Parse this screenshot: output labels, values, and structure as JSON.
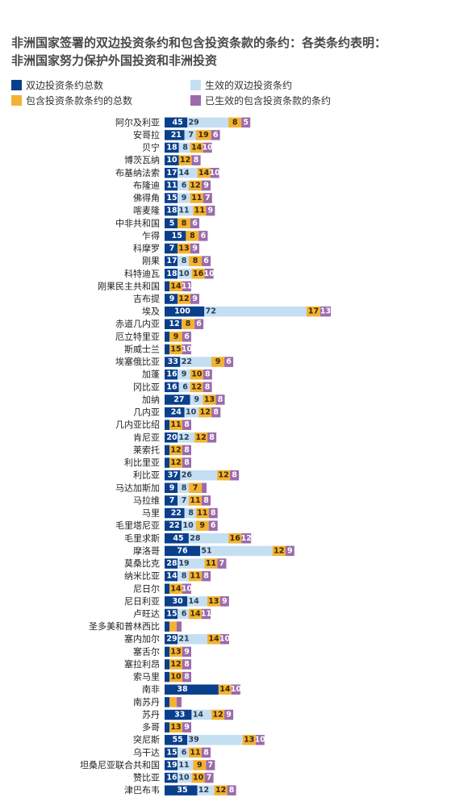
{
  "title_lines": [
    "非洲国家签署的双边投资条约和包含投资条款的条约：各类条约表明：",
    "非洲国家努力保护外国投资和非洲投资"
  ],
  "colors": {
    "bit_total": "#0a3f8c",
    "bit_in_force": "#c5dff2",
    "tip_total": "#f2b233",
    "tip_in_force": "#9b6bab"
  },
  "legend": [
    {
      "key": "bit_total",
      "label": "双边投资条约总数"
    },
    {
      "key": "bit_in_force",
      "label": "生效的双边投资条约"
    },
    {
      "key": "tip_total",
      "label": "包含投资条款条约的总数"
    },
    {
      "key": "tip_in_force",
      "label": "已生效的包含投资条款的条约"
    }
  ],
  "chart_data": {
    "type": "bar",
    "orientation": "horizontal",
    "stacked": true,
    "legend_position": "top",
    "grid": false,
    "series_names": [
      "双边投资条约总数",
      "生效的双边投资条约",
      "包含投资条款条约的总数",
      "已生效的包含投资条款的条约"
    ],
    "countries": [
      {
        "name": "阿尔及利亚",
        "bit_total": 45,
        "bit_in_force": 29,
        "tip_total": 8,
        "tip_in_force": 5
      },
      {
        "name": "安哥拉",
        "bit_total": 21,
        "bit_in_force": 7,
        "tip_total": 19,
        "tip_in_force": 6
      },
      {
        "name": "贝宁",
        "bit_total": 18,
        "bit_in_force": 8,
        "tip_total": 14,
        "tip_in_force": 10
      },
      {
        "name": "博茨瓦纳",
        "bit_total": 10,
        "bit_in_force": null,
        "tip_total": 12,
        "tip_in_force": 8
      },
      {
        "name": "布基纳法索",
        "bit_total": 17,
        "bit_in_force": 14,
        "tip_total": 14,
        "tip_in_force": 10
      },
      {
        "name": "布隆迪",
        "bit_total": 11,
        "bit_in_force": 6,
        "tip_total": 12,
        "tip_in_force": 9
      },
      {
        "name": "佛得角",
        "bit_total": 15,
        "bit_in_force": 9,
        "tip_total": 11,
        "tip_in_force": 7
      },
      {
        "name": "喀麦隆",
        "bit_total": 18,
        "bit_in_force": 11,
        "tip_total": 11,
        "tip_in_force": 9
      },
      {
        "name": "中非共和国",
        "bit_total": 5,
        "bit_in_force": null,
        "tip_total": 8,
        "tip_in_force": 6
      },
      {
        "name": "乍得",
        "bit_total": 15,
        "bit_in_force": null,
        "tip_total": 8,
        "tip_in_force": 6
      },
      {
        "name": "科摩罗",
        "bit_total": 7,
        "bit_in_force": null,
        "tip_total": 13,
        "tip_in_force": 9
      },
      {
        "name": "刚果",
        "bit_total": 17,
        "bit_in_force": 8,
        "tip_total": 8,
        "tip_in_force": 6
      },
      {
        "name": "科特迪瓦",
        "bit_total": 18,
        "bit_in_force": 10,
        "tip_total": 16,
        "tip_in_force": 10
      },
      {
        "name": "刚果民主共和国",
        "bit_total": null,
        "bit_in_force": null,
        "tip_total": 14,
        "tip_in_force": 11
      },
      {
        "name": "吉布提",
        "bit_total": 9,
        "bit_in_force": null,
        "tip_total": 12,
        "tip_in_force": 9
      },
      {
        "name": "埃及",
        "bit_total": 100,
        "bit_in_force": 72,
        "tip_total": 17,
        "tip_in_force": 13
      },
      {
        "name": "赤道几内亚",
        "bit_total": 12,
        "bit_in_force": null,
        "tip_total": 8,
        "tip_in_force": 6
      },
      {
        "name": "厄立特里亚",
        "bit_total": null,
        "bit_in_force": null,
        "tip_total": 9,
        "tip_in_force": 6
      },
      {
        "name": "斯威士兰",
        "bit_total": null,
        "bit_in_force": null,
        "tip_total": 15,
        "tip_in_force": 10
      },
      {
        "name": "埃塞俄比亚",
        "bit_total": 33,
        "bit_in_force": 22,
        "tip_total": 9,
        "tip_in_force": 6
      },
      {
        "name": "加蓬",
        "bit_total": 16,
        "bit_in_force": 9,
        "tip_total": 10,
        "tip_in_force": 8
      },
      {
        "name": "冈比亚",
        "bit_total": 16,
        "bit_in_force": 6,
        "tip_total": 12,
        "tip_in_force": 8
      },
      {
        "name": "加纳",
        "bit_total": 27,
        "bit_in_force": 9,
        "tip_total": 13,
        "tip_in_force": 8
      },
      {
        "name": "几内亚",
        "bit_total": 24,
        "bit_in_force": 10,
        "tip_total": 12,
        "tip_in_force": 8
      },
      {
        "name": "几内亚比绍",
        "bit_total": null,
        "bit_in_force": null,
        "tip_total": 11,
        "tip_in_force": 8
      },
      {
        "name": "肯尼亚",
        "bit_total": 20,
        "bit_in_force": 12,
        "tip_total": 12,
        "tip_in_force": 8
      },
      {
        "name": "莱索托",
        "bit_total": null,
        "bit_in_force": null,
        "tip_total": 12,
        "tip_in_force": 8
      },
      {
        "name": "利比里亚",
        "bit_total": null,
        "bit_in_force": null,
        "tip_total": 12,
        "tip_in_force": 8
      },
      {
        "name": "利比亚",
        "bit_total": 37,
        "bit_in_force": 26,
        "tip_total": 12,
        "tip_in_force": 8
      },
      {
        "name": "马达加斯加",
        "bit_total": 9,
        "bit_in_force": 8,
        "tip_total": 7,
        "tip_in_force": null
      },
      {
        "name": "马拉维",
        "bit_total": 7,
        "bit_in_force": 7,
        "tip_total": 11,
        "tip_in_force": 8
      },
      {
        "name": "马里",
        "bit_total": 22,
        "bit_in_force": 8,
        "tip_total": 11,
        "tip_in_force": 8
      },
      {
        "name": "毛里塔尼亚",
        "bit_total": 22,
        "bit_in_force": 10,
        "tip_total": 9,
        "tip_in_force": 6
      },
      {
        "name": "毛里求斯",
        "bit_total": 45,
        "bit_in_force": 28,
        "tip_total": 16,
        "tip_in_force": 12
      },
      {
        "name": "摩洛哥",
        "bit_total": 76,
        "bit_in_force": 51,
        "tip_total": 12,
        "tip_in_force": 9
      },
      {
        "name": "莫桑比克",
        "bit_total": 28,
        "bit_in_force": 19,
        "tip_total": 11,
        "tip_in_force": 7
      },
      {
        "name": "纳米比亚",
        "bit_total": 14,
        "bit_in_force": 8,
        "tip_total": 11,
        "tip_in_force": 8
      },
      {
        "name": "尼日尔",
        "bit_total": null,
        "bit_in_force": null,
        "tip_total": 14,
        "tip_in_force": 10
      },
      {
        "name": "尼日利亚",
        "bit_total": 30,
        "bit_in_force": 14,
        "tip_total": 13,
        "tip_in_force": 9
      },
      {
        "name": "卢旺达",
        "bit_total": 15,
        "bit_in_force": 6,
        "tip_total": 14,
        "tip_in_force": 11
      },
      {
        "name": "圣多美和普林西比",
        "bit_total": null,
        "bit_in_force": null,
        "tip_total": null,
        "tip_in_force": null
      },
      {
        "name": "塞内加尔",
        "bit_total": 29,
        "bit_in_force": 21,
        "tip_total": 14,
        "tip_in_force": 10
      },
      {
        "name": "塞舌尔",
        "bit_total": null,
        "bit_in_force": null,
        "tip_total": 13,
        "tip_in_force": 9
      },
      {
        "name": "塞拉利昂",
        "bit_total": null,
        "bit_in_force": null,
        "tip_total": 12,
        "tip_in_force": 8
      },
      {
        "name": "索马里",
        "bit_total": null,
        "bit_in_force": null,
        "tip_total": 10,
        "tip_in_force": 8
      },
      {
        "name": "南非",
        "bit_total": 38,
        "bit_in_force": null,
        "tip_total": 14,
        "tip_in_force": 10
      },
      {
        "name": "南苏丹",
        "bit_total": null,
        "bit_in_force": null,
        "tip_total": null,
        "tip_in_force": null
      },
      {
        "name": "苏丹",
        "bit_total": 33,
        "bit_in_force": 14,
        "tip_total": 12,
        "tip_in_force": 9
      },
      {
        "name": "多哥",
        "bit_total": null,
        "bit_in_force": null,
        "tip_total": 13,
        "tip_in_force": 9
      },
      {
        "name": "突尼斯",
        "bit_total": 55,
        "bit_in_force": 39,
        "tip_total": 13,
        "tip_in_force": 10
      },
      {
        "name": "乌干达",
        "bit_total": 15,
        "bit_in_force": 6,
        "tip_total": 11,
        "tip_in_force": 8
      },
      {
        "name": "坦桑尼亚联合共和国",
        "bit_total": 19,
        "bit_in_force": 11,
        "tip_total": 9,
        "tip_in_force": 7
      },
      {
        "name": "赞比亚",
        "bit_total": 16,
        "bit_in_force": 10,
        "tip_total": 10,
        "tip_in_force": 7
      },
      {
        "name": "津巴布韦",
        "bit_total": 35,
        "bit_in_force": 12,
        "tip_total": 12,
        "tip_in_force": 8
      }
    ]
  }
}
